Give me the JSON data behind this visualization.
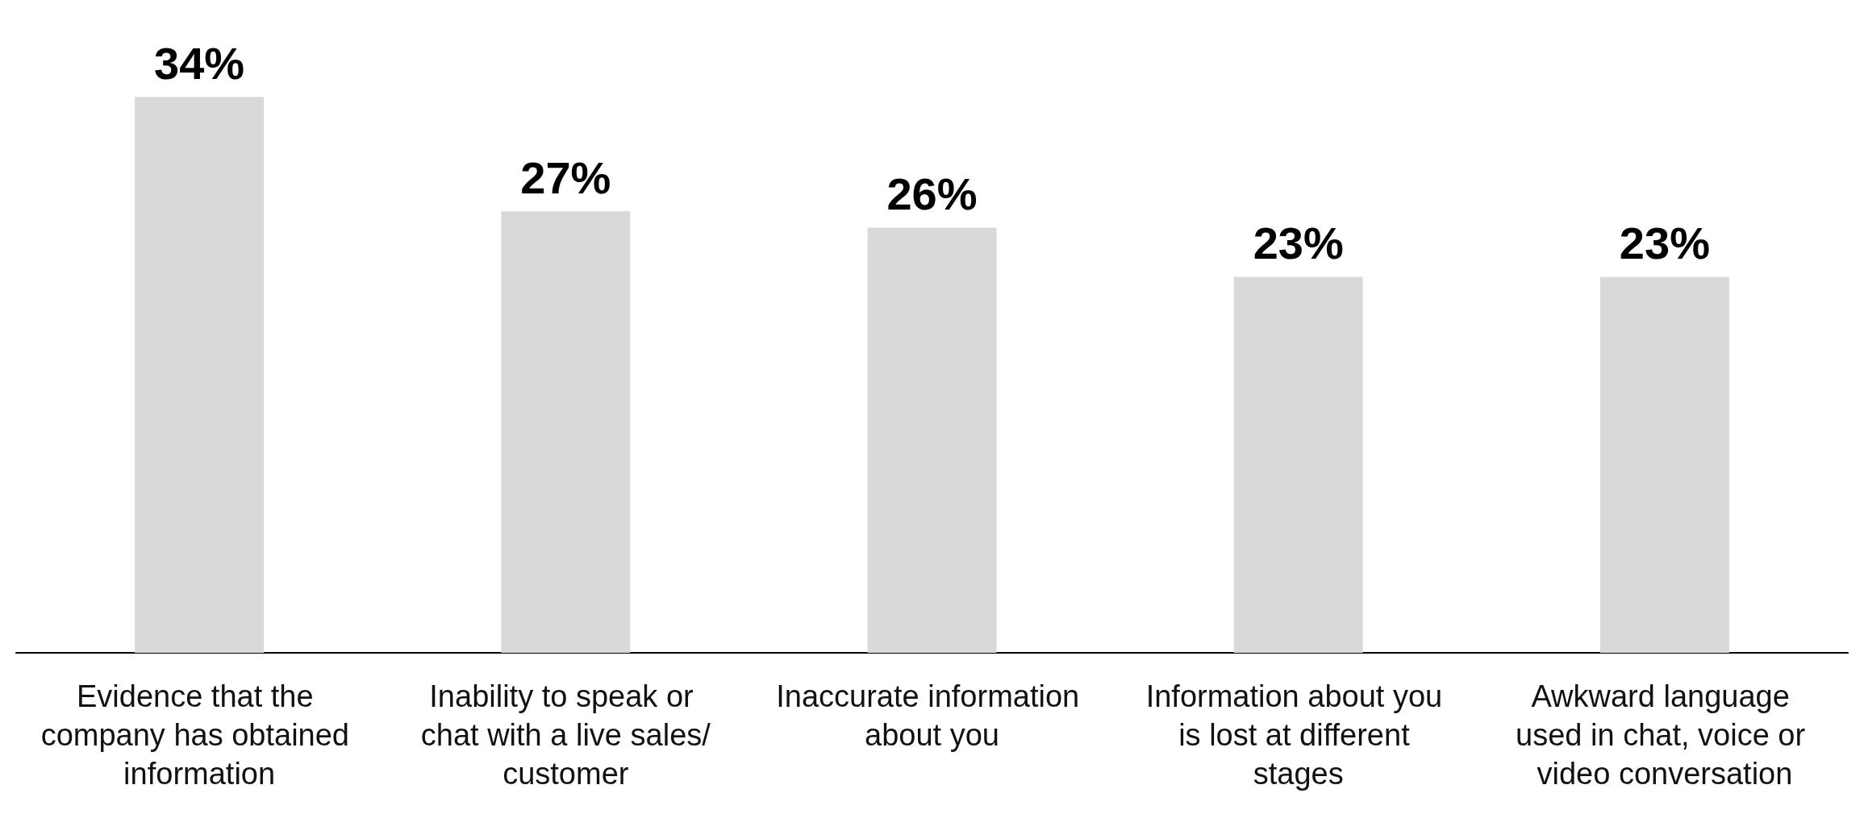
{
  "chart_data": {
    "type": "bar",
    "categories": [
      "Evidence that the company has obtained information",
      "Inability to speak or chat with a live sales/customer",
      "Inaccurate information about you",
      "Information about you is lost at different stages",
      "Awkward language used in chat, voice or video conversation"
    ],
    "values": [
      34,
      27,
      26,
      23,
      23
    ],
    "value_labels": [
      "34%",
      "27%",
      "26%",
      "23%",
      "23%"
    ],
    "color": "#d8d9d8"
  }
}
